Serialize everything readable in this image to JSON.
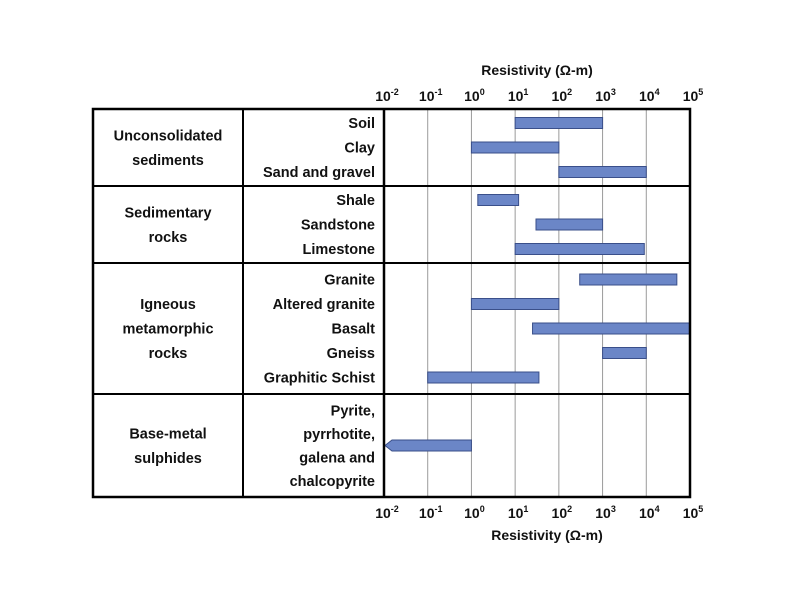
{
  "chart_data": {
    "type": "bar",
    "orientation": "horizontal-range",
    "x_title": "Resistivity (Ω-m)",
    "x_scale": "log10",
    "x_ticks": [
      {
        "base": "10",
        "exp": "-2",
        "value": 0.01
      },
      {
        "base": "10",
        "exp": "-1",
        "value": 0.1
      },
      {
        "base": "10",
        "exp": "0",
        "value": 1
      },
      {
        "base": "10",
        "exp": "1",
        "value": 10
      },
      {
        "base": "10",
        "exp": "2",
        "value": 100
      },
      {
        "base": "10",
        "exp": "3",
        "value": 1000
      },
      {
        "base": "10",
        "exp": "4",
        "value": 10000
      },
      {
        "base": "10",
        "exp": "5",
        "value": 100000
      }
    ],
    "xlim": [
      0.01,
      100000
    ],
    "bar_color": "#6b86c7",
    "bar_border": "#3a4f8a",
    "groups": [
      {
        "label_lines": [
          "Unconsolidated",
          "sediments"
        ],
        "items": [
          {
            "lines": [
              "Soil"
            ],
            "min": 10,
            "max": 1000
          },
          {
            "lines": [
              "Clay"
            ],
            "min": 1,
            "max": 100
          },
          {
            "lines": [
              "Sand and gravel"
            ],
            "min": 100,
            "max": 10000
          }
        ]
      },
      {
        "label_lines": [
          "Sedimentary",
          "rocks"
        ],
        "items": [
          {
            "lines": [
              "Shale"
            ],
            "min": 1.4,
            "max": 12
          },
          {
            "lines": [
              "Sandstone"
            ],
            "min": 30,
            "max": 1000
          },
          {
            "lines": [
              "Limestone"
            ],
            "min": 10,
            "max": 9000
          }
        ]
      },
      {
        "label_lines": [
          "Igneous",
          "metamorphic",
          "rocks"
        ],
        "items": [
          {
            "lines": [
              "Granite"
            ],
            "min": 300,
            "max": 50000
          },
          {
            "lines": [
              "Altered granite"
            ],
            "min": 1,
            "max": 100
          },
          {
            "lines": [
              "Basalt"
            ],
            "min": 25,
            "max": 100000
          },
          {
            "lines": [
              "Gneiss"
            ],
            "min": 1000,
            "max": 10000
          },
          {
            "lines": [
              "Graphitic Schist"
            ],
            "min": 0.1,
            "max": 35
          }
        ]
      },
      {
        "label_lines": [
          "Base-metal",
          "sulphides"
        ],
        "items": [
          {
            "lines": [
              "Pyrite,",
              "pyrrhotite,",
              "galena and",
              "chalcopyrite"
            ],
            "min": 0.01,
            "max": 1,
            "open_left": true
          }
        ]
      }
    ]
  }
}
